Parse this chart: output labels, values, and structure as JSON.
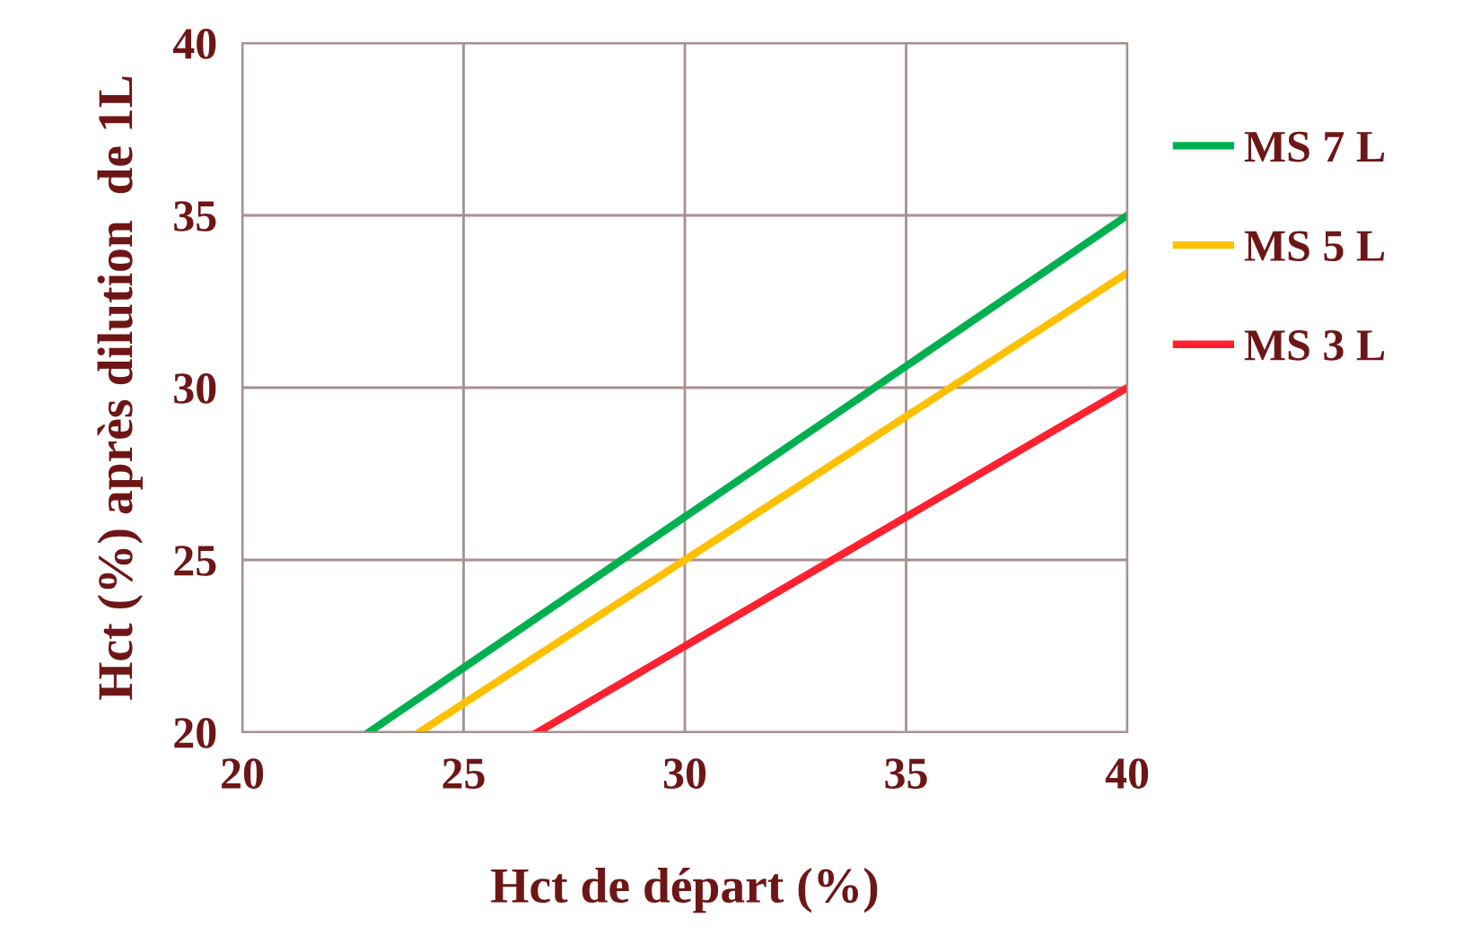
{
  "chart_data": {
    "type": "line",
    "xlabel": "Hct de départ (%)",
    "ylabel": "Hct (%) après dilution  de 1L",
    "series": [
      {
        "name": "MS 7 L",
        "color": "#00b050",
        "x": [
          22.86,
          40
        ],
        "values": [
          20,
          35
        ]
      },
      {
        "name": "MS 5 L",
        "color": "#ffc000",
        "x": [
          24,
          40
        ],
        "values": [
          20,
          33.33
        ]
      },
      {
        "name": "MS 3 L",
        "color": "#ff2030",
        "x": [
          26.67,
          40
        ],
        "values": [
          20,
          30
        ]
      }
    ],
    "xlim": [
      20,
      40
    ],
    "xticks": [
      20,
      25,
      30,
      35,
      40
    ],
    "ylim": [
      20,
      40
    ],
    "yticks": [
      20,
      25,
      30,
      35,
      40
    ],
    "grid": true,
    "legend": "right",
    "marker": "none",
    "line_style": "solid"
  }
}
